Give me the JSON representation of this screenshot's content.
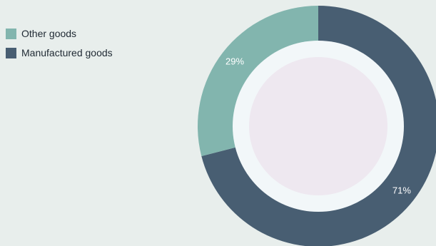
{
  "chart_data": {
    "type": "pie",
    "variant": "donut",
    "categories": [
      "Other goods",
      "Manufactured goods"
    ],
    "values": [
      29,
      71
    ],
    "value_labels": [
      "29%",
      "71%"
    ],
    "colors": [
      "#82b5ae",
      "#485e72"
    ],
    "legend_position": "top-left",
    "inner_ring_color": "#f2f7f9",
    "center_color": "#eee8f0"
  }
}
